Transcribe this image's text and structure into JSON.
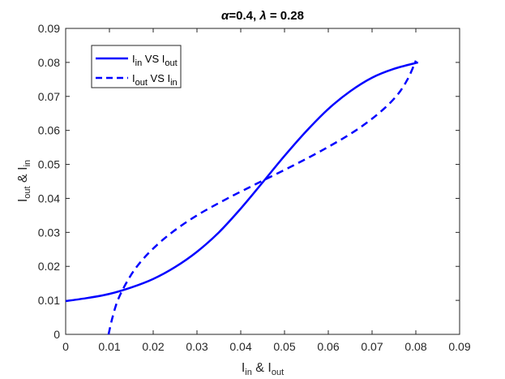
{
  "chart_data": {
    "type": "line",
    "title": {
      "alpha_symbol": "α",
      "alpha_text": "=0.4, ",
      "lambda_symbol": "λ",
      "lambda_text": " = 0.28"
    },
    "xlabel": {
      "a": "I",
      "a_sub": "in",
      "mid": " & I",
      "b_sub": "out"
    },
    "ylabel": {
      "a": "I",
      "a_sub": "out",
      "mid": " & I",
      "b_sub": "in"
    },
    "xlim": [
      0,
      0.09
    ],
    "ylim": [
      0,
      0.09
    ],
    "xticks": [
      "0",
      "0.01",
      "0.02",
      "0.03",
      "0.04",
      "0.05",
      "0.06",
      "0.07",
      "0.08",
      "0.09"
    ],
    "yticks": [
      "0",
      "0.01",
      "0.02",
      "0.03",
      "0.04",
      "0.05",
      "0.06",
      "0.07",
      "0.08",
      "0.09"
    ],
    "grid": false,
    "legend_position": "top-left",
    "color": "#0000ff",
    "series": [
      {
        "legend": {
          "a": "I",
          "a_sub": "in",
          "mid": " VS I",
          "b_sub": "out"
        },
        "style": "solid",
        "x": [
          0,
          0.005,
          0.01,
          0.015,
          0.02,
          0.025,
          0.03,
          0.035,
          0.04,
          0.045,
          0.05,
          0.055,
          0.06,
          0.065,
          0.07,
          0.075,
          0.0805
        ],
        "y": [
          0.0098,
          0.0107,
          0.0119,
          0.0138,
          0.0163,
          0.0198,
          0.0243,
          0.03,
          0.037,
          0.0447,
          0.0525,
          0.0598,
          0.0663,
          0.0715,
          0.0755,
          0.0781,
          0.08
        ]
      },
      {
        "legend": {
          "a": "I",
          "a_sub": "out",
          "mid": " VS I",
          "b_sub": "in"
        },
        "style": "dashed",
        "x": [
          0.0098,
          0.0107,
          0.0119,
          0.0138,
          0.0163,
          0.0198,
          0.0243,
          0.03,
          0.037,
          0.0447,
          0.0525,
          0.0598,
          0.0663,
          0.0715,
          0.0755,
          0.0781,
          0.08
        ],
        "y": [
          0,
          0.005,
          0.01,
          0.015,
          0.02,
          0.025,
          0.03,
          0.035,
          0.04,
          0.045,
          0.05,
          0.055,
          0.06,
          0.065,
          0.07,
          0.075,
          0.0805
        ]
      }
    ]
  }
}
